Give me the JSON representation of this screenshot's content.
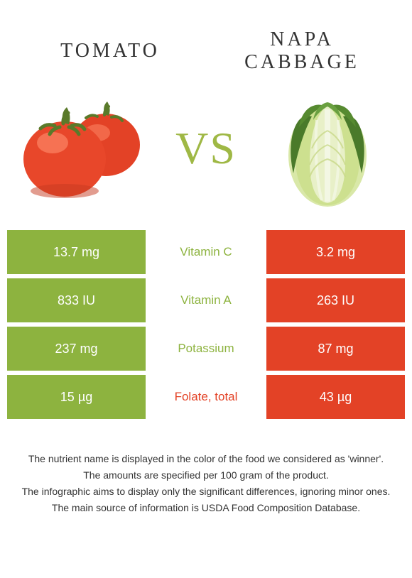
{
  "left": {
    "title": "Tomato",
    "color": "#e34226",
    "barColor": "#8db33f"
  },
  "right": {
    "title": "Napa cabbage",
    "color": "#8db33f",
    "barColor": "#e34226"
  },
  "vs": "VS",
  "rows": [
    {
      "label": "Vitamin C",
      "left": "13.7 mg",
      "right": "3.2 mg",
      "winner": "left"
    },
    {
      "label": "Vitamin A",
      "left": "833 IU",
      "right": "263 IU",
      "winner": "left"
    },
    {
      "label": "Potassium",
      "left": "237 mg",
      "right": "87 mg",
      "winner": "left"
    },
    {
      "label": "Folate, total",
      "left": "15 µg",
      "right": "43 µg",
      "winner": "right"
    }
  ],
  "colors": {
    "leftWin": "#8db33f",
    "rightWin": "#e34226",
    "barLeft": "#8db33f",
    "barRight": "#e34226",
    "labelWinnerLeft": "#8db33f",
    "labelWinnerRight": "#e34226"
  },
  "footer": [
    "The nutrient name is displayed in the color of the food we considered as 'winner'.",
    "The amounts are specified per 100 gram of the product.",
    "The infographic aims to display only the significant differences, ignoring minor ones.",
    "The main source of information is USDA Food Composition Database."
  ]
}
